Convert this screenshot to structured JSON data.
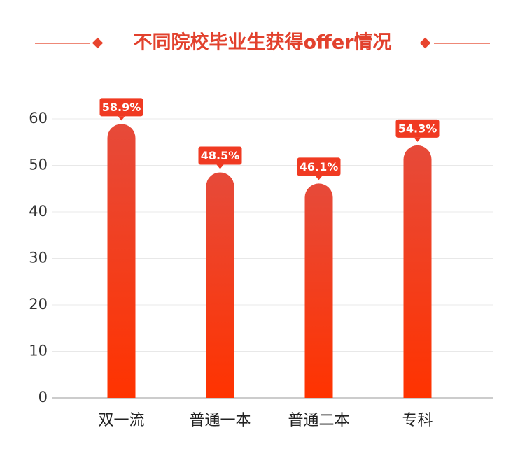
{
  "chart_data": {
    "type": "bar",
    "title": "不同院校毕业生获得offer情况",
    "categories": [
      "双一流",
      "普通一本",
      "普通二本",
      "专科"
    ],
    "values": [
      58.9,
      48.5,
      46.1,
      54.3
    ],
    "value_labels": [
      "58.9%",
      "48.5%",
      "46.1%",
      "54.3%"
    ],
    "color": "#f03a22",
    "ylim": [
      0,
      60
    ],
    "yticks": [
      0,
      10,
      20,
      30,
      40,
      50,
      60
    ],
    "grid": true
  }
}
